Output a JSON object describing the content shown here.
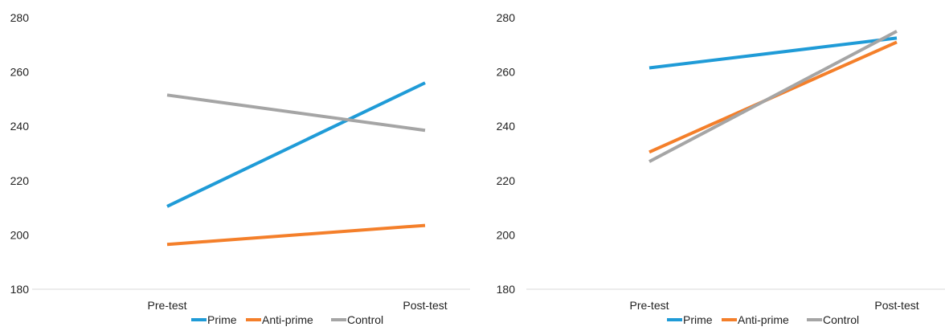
{
  "chart_data": [
    {
      "type": "line",
      "categories": [
        "Pre-test",
        "Post-test"
      ],
      "ylim": [
        180,
        280
      ],
      "yticks": [
        180,
        200,
        220,
        240,
        260,
        280
      ],
      "grid": false,
      "legend_position": "bottom",
      "series": [
        {
          "name": "Prime",
          "color": "#1f9bd7",
          "values": [
            210.5,
            256
          ]
        },
        {
          "name": "Anti-prime",
          "color": "#f47f2a",
          "values": [
            196.5,
            203.5
          ]
        },
        {
          "name": "Control",
          "color": "#a5a5a5",
          "values": [
            251.5,
            238.5
          ]
        }
      ]
    },
    {
      "type": "line",
      "categories": [
        "Pre-test",
        "Post-test"
      ],
      "ylim": [
        180,
        280
      ],
      "yticks": [
        180,
        200,
        220,
        240,
        260,
        280
      ],
      "grid": false,
      "legend_position": "bottom",
      "series": [
        {
          "name": "Prime",
          "color": "#1f9bd7",
          "values": [
            261.5,
            272.5
          ]
        },
        {
          "name": "Anti-prime",
          "color": "#f47f2a",
          "values": [
            230.5,
            271
          ]
        },
        {
          "name": "Control",
          "color": "#a5a5a5",
          "values": [
            227,
            275
          ]
        }
      ]
    }
  ]
}
